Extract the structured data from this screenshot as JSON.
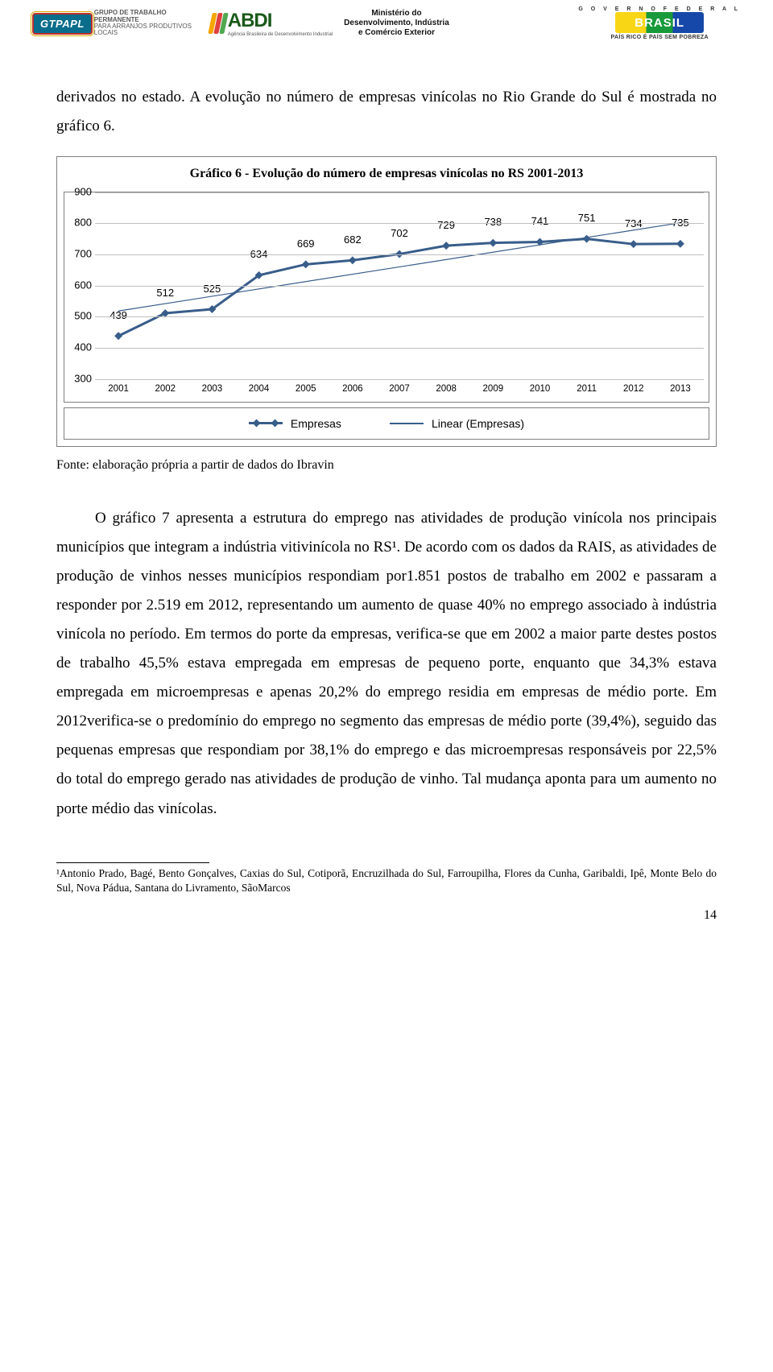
{
  "header": {
    "gtpapl_badge": "GTPAPL",
    "gtpapl_line1": "Grupo de Trabalho Permanente",
    "gtpapl_line2": "para Arranjos Produtivos Locais",
    "abdi_text": "ABDI",
    "abdi_sub": "Agência Brasileira de Desenvolvimento Industrial",
    "ministry_l1": "Ministério do",
    "ministry_l2": "Desenvolvimento, Indústria",
    "ministry_l3": "e Comércio Exterior",
    "brasil_top": "G O V E R N O   F E D E R A L",
    "brasil_word": "BRASIL",
    "brasil_tag": "PAÍS RICO É PAÍS SEM POBREZA"
  },
  "intro": "derivados no estado. A evolução no número de empresas vinícolas no Rio Grande do Sul é mostrada no gráfico 6.",
  "chart": {
    "title": "Gráfico 6 - Evolução do número de empresas vinícolas no RS 2001-2013",
    "ylim": [
      300,
      900
    ],
    "ytick_step": 100,
    "yticks": [
      300,
      400,
      500,
      600,
      700,
      800,
      900
    ],
    "years": [
      "2001",
      "2002",
      "2003",
      "2004",
      "2005",
      "2006",
      "2007",
      "2008",
      "2009",
      "2010",
      "2011",
      "2012",
      "2013"
    ],
    "values": [
      439,
      512,
      525,
      634,
      669,
      682,
      702,
      729,
      738,
      741,
      751,
      734,
      735
    ],
    "series_color": "#385d8a",
    "trend_color": "#385d8a",
    "grid_color": "#bfbfbf",
    "background_color": "#ffffff",
    "legend_series": "Empresas",
    "legend_trend": "Linear (Empresas)"
  },
  "source": "Fonte: elaboração própria a partir de dados do Ibravin",
  "body": "O gráfico 7 apresenta a estrutura do emprego nas atividades de produção vinícola nos principais municípios que integram a indústria vitivinícola no RS¹. De acordo com os dados da RAIS, as atividades de produção de vinhos nesses municípios respondiam por1.851 postos de trabalho em 2002 e passaram a responder por 2.519 em 2012, representando um aumento de quase 40% no emprego associado à indústria vinícola no período. Em termos do porte da empresas, verifica-se que em 2002 a maior parte destes postos de trabalho 45,5% estava empregada em empresas de pequeno porte, enquanto que 34,3% estava empregada em microempresas e apenas 20,2% do emprego residia em empresas de médio porte. Em 2012verifica-se o predomínio do emprego no segmento das empresas de médio porte (39,4%), seguido das pequenas empresas que respondiam por 38,1% do emprego e das microempresas responsáveis por 22,5% do total do emprego gerado nas atividades de produção de vinho. Tal mudança aponta para um aumento no porte médio das vinícolas.",
  "footnote": "¹Antonio Prado, Bagé, Bento Gonçalves, Caxias do Sul, Cotiporã, Encruzilhada do Sul, Farroupilha, Flores da Cunha, Garibaldi, Ipê, Monte Belo do Sul, Nova Pádua, Santana do Livramento, SãoMarcos",
  "pagenum": "14"
}
